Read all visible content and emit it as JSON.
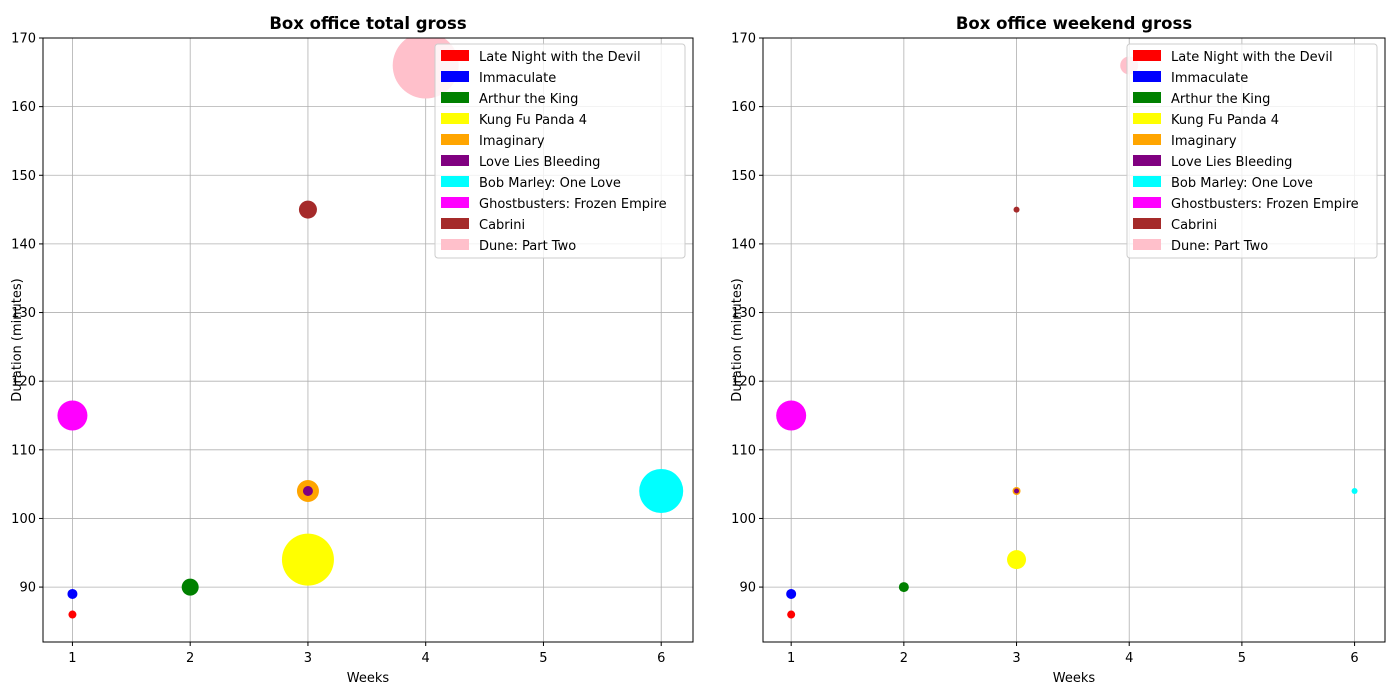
{
  "chart_data": [
    {
      "type": "scatter",
      "title": "Box office total gross",
      "xlabel": "Weeks",
      "ylabel": "Duration (minutes)",
      "xlim": [
        0.75,
        6.27
      ],
      "ylim": [
        82,
        170
      ],
      "xticks": [
        "1",
        "2",
        "3",
        "4",
        "5",
        "6"
      ],
      "yticks": [
        "90",
        "100",
        "110",
        "120",
        "130",
        "140",
        "150",
        "160",
        "170"
      ],
      "grid": true,
      "legend_position": "upper right",
      "size_encoding": "bubble size proportional to total gross",
      "series": [
        {
          "name": "Late Night with the Devil",
          "color": "#ff0000",
          "x": 1,
          "y": 86,
          "r": 4
        },
        {
          "name": "Immaculate",
          "color": "#0000ff",
          "x": 1,
          "y": 89,
          "r": 5
        },
        {
          "name": "Arthur the King",
          "color": "#008000",
          "x": 2,
          "y": 90,
          "r": 8.5
        },
        {
          "name": "Kung Fu Panda 4",
          "color": "#ffff00",
          "x": 3,
          "y": 94,
          "r": 26
        },
        {
          "name": "Imaginary",
          "color": "#ffa500",
          "x": 3,
          "y": 104,
          "r": 11
        },
        {
          "name": "Love Lies Bleeding",
          "color": "#800080",
          "x": 3,
          "y": 104,
          "r": 5
        },
        {
          "name": "Bob Marley: One Love",
          "color": "#00ffff",
          "x": 6,
          "y": 104,
          "r": 22
        },
        {
          "name": "Ghostbusters: Frozen Empire",
          "color": "#ff00ff",
          "x": 1,
          "y": 115,
          "r": 15
        },
        {
          "name": "Cabrini",
          "color": "#a52a2a",
          "x": 3,
          "y": 145,
          "r": 9
        },
        {
          "name": "Dune: Part Two",
          "color": "#ffc0cb",
          "x": 4,
          "y": 166,
          "r": 33
        }
      ]
    },
    {
      "type": "scatter",
      "title": "Box office weekend gross",
      "xlabel": "Weeks",
      "ylabel": "Duration (minutes)",
      "xlim": [
        0.75,
        6.27
      ],
      "ylim": [
        82,
        170
      ],
      "xticks": [
        "1",
        "2",
        "3",
        "4",
        "5",
        "6"
      ],
      "yticks": [
        "90",
        "100",
        "110",
        "120",
        "130",
        "140",
        "150",
        "160",
        "170"
      ],
      "grid": true,
      "legend_position": "upper right",
      "size_encoding": "bubble size proportional to weekend gross",
      "series": [
        {
          "name": "Late Night with the Devil",
          "color": "#ff0000",
          "x": 1,
          "y": 86,
          "r": 4
        },
        {
          "name": "Immaculate",
          "color": "#0000ff",
          "x": 1,
          "y": 89,
          "r": 5
        },
        {
          "name": "Arthur the King",
          "color": "#008000",
          "x": 2,
          "y": 90,
          "r": 5
        },
        {
          "name": "Kung Fu Panda 4",
          "color": "#ffff00",
          "x": 3,
          "y": 94,
          "r": 9.5
        },
        {
          "name": "Imaginary",
          "color": "#ffa500",
          "x": 3,
          "y": 104,
          "r": 4
        },
        {
          "name": "Love Lies Bleeding",
          "color": "#800080",
          "x": 3,
          "y": 104,
          "r": 2.5
        },
        {
          "name": "Bob Marley: One Love",
          "color": "#00ffff",
          "x": 6,
          "y": 104,
          "r": 3
        },
        {
          "name": "Ghostbusters: Frozen Empire",
          "color": "#ff00ff",
          "x": 1,
          "y": 115,
          "r": 15
        },
        {
          "name": "Cabrini",
          "color": "#a52a2a",
          "x": 3,
          "y": 145,
          "r": 3
        },
        {
          "name": "Dune: Part Two",
          "color": "#ffc0cb",
          "x": 4,
          "y": 166,
          "r": 9
        }
      ]
    }
  ]
}
